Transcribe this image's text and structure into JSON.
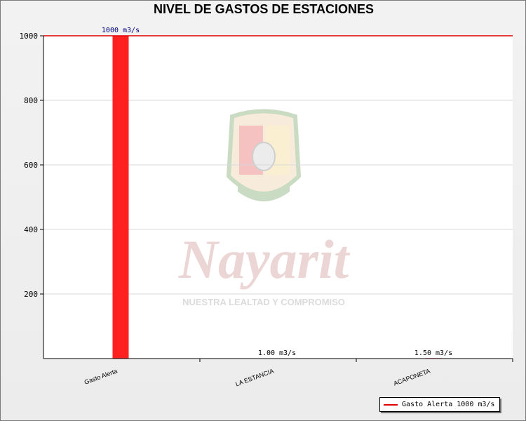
{
  "chart_data": {
    "type": "bar",
    "title": "NIVEL DE GASTOS DE ESTACIONES",
    "categories": [
      "Gasto Alerta",
      "LA ESTANCIA",
      "ACAPONETA"
    ],
    "values": [
      1000,
      1.0,
      1.5
    ],
    "data_labels": [
      "1000 m3/s",
      "1.00 m3/s",
      "1.50 m3/s"
    ],
    "yticks": [
      200,
      400,
      600,
      800,
      1000
    ],
    "ylim": [
      0,
      1000
    ],
    "xlabel": "",
    "ylabel": "",
    "grid": true,
    "bar_color": "#ff2020",
    "reference_line": {
      "value": 1000,
      "color": "#e00000"
    },
    "legend": {
      "position": "bottom-right",
      "entries": [
        "Gasto Alerta 1000 m3/s"
      ]
    }
  },
  "watermark": {
    "name": "Nayarit",
    "motto": "NUESTRA LEALTAD Y COMPROMISO"
  }
}
